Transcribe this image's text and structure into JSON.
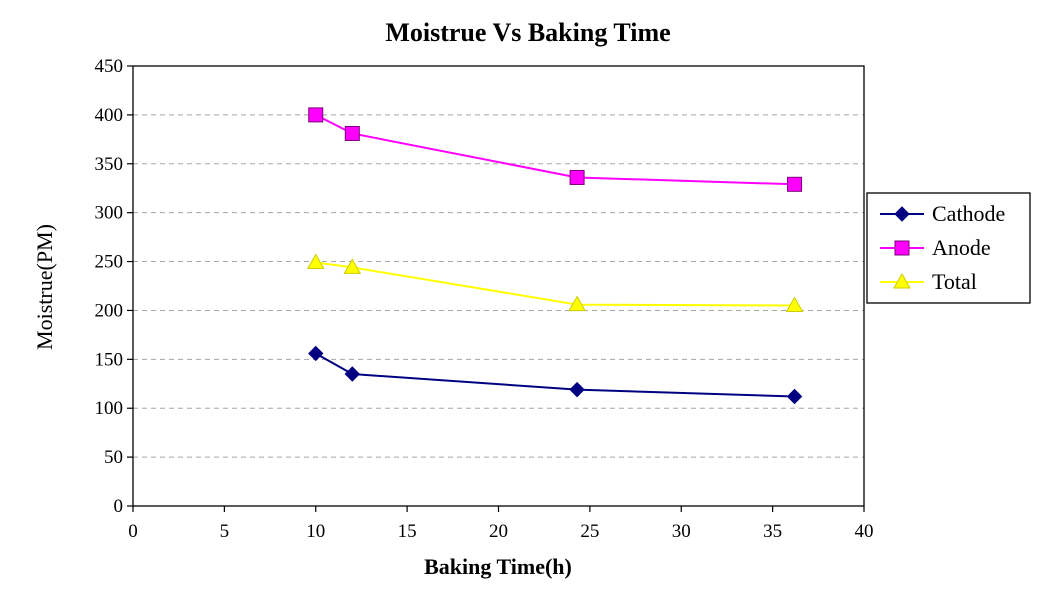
{
  "chart_data": {
    "type": "line",
    "title": "Moistrue Vs Baking Time",
    "xlabel": "Baking Time(h)",
    "ylabel": "Moistrue(PM)",
    "xlim": [
      0,
      40
    ],
    "ylim": [
      0,
      450
    ],
    "x_ticks": [
      0,
      5,
      10,
      15,
      20,
      25,
      30,
      35,
      40
    ],
    "y_ticks": [
      0,
      50,
      100,
      150,
      200,
      250,
      300,
      350,
      400,
      450
    ],
    "grid": "horizontal dashed",
    "legend_position": "right",
    "series": [
      {
        "name": "Cathode",
        "color": "#000080",
        "marker": "diamond",
        "points": [
          [
            10,
            156
          ],
          [
            12,
            135
          ],
          [
            24.3,
            119
          ],
          [
            36.2,
            112
          ]
        ]
      },
      {
        "name": "Anode",
        "color": "#ff00ff",
        "marker": "square",
        "points": [
          [
            10,
            400
          ],
          [
            12,
            381
          ],
          [
            24.3,
            336
          ],
          [
            36.2,
            329
          ]
        ]
      },
      {
        "name": "Total",
        "color": "#ffff00",
        "marker": "triangle",
        "points": [
          [
            10,
            249
          ],
          [
            12,
            244
          ],
          [
            24.3,
            206
          ],
          [
            36.2,
            205
          ]
        ]
      }
    ]
  }
}
